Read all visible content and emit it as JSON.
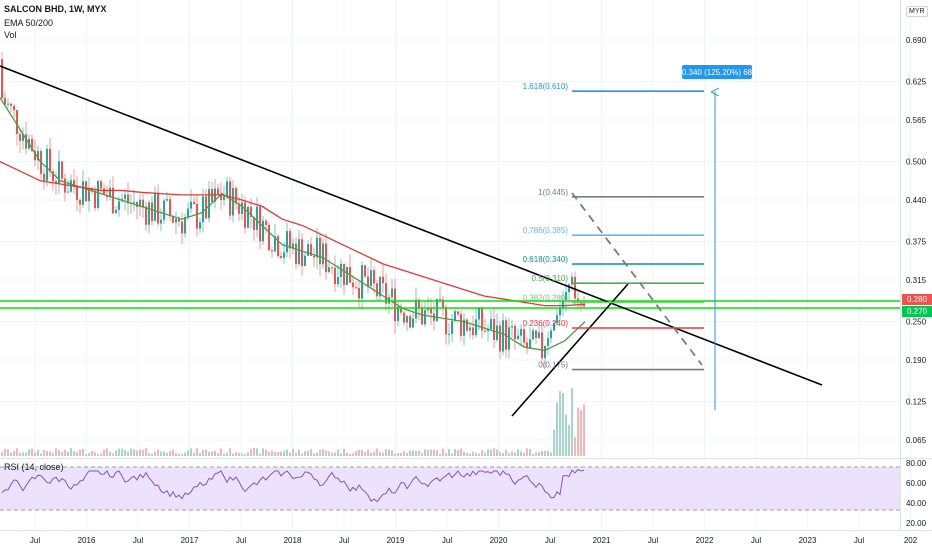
{
  "header": {
    "symbol_line": "SALCON BHD, 1W, MYX",
    "ema_label": "EMA 50/200",
    "vol_label": "Vol",
    "currency": "MYR",
    "rsi_label": "RSI (14, close)"
  },
  "colors": {
    "up": "#26a69a",
    "down": "#ef5350",
    "ema50": "#43a047",
    "ema200": "#e53935",
    "support": "#00e600",
    "target": "#2196f3",
    "rsi_line": "#7e57c2",
    "rsi_band": "#ede2fb"
  },
  "chart_data": {
    "type": "candlestick",
    "price_ticks": [
      "0.690",
      "0.625",
      "0.565",
      "0.500",
      "0.440",
      "0.375",
      "0.315",
      "0.250",
      "0.190",
      "0.125",
      "0.065"
    ],
    "time_ticks": [
      "Jul",
      "2016",
      "Jul",
      "2017",
      "Jul",
      "2018",
      "Jul",
      "2019",
      "Jul",
      "2020",
      "Jul",
      "2021",
      "Jul",
      "2022",
      "Jul",
      "2023",
      "Jul",
      "202"
    ],
    "rsi_ticks": [
      "80.00",
      "60.00",
      "40.00",
      "20.00"
    ],
    "current_price": "0.280",
    "support_level": "0.270",
    "fib_levels": [
      {
        "label": "1.618(0.610)",
        "price": 0.61,
        "color": "#2196f3"
      },
      {
        "label": "1(0.445)",
        "price": 0.445,
        "color": "#787b86"
      },
      {
        "label": "0.786(0.385)",
        "price": 0.385,
        "color": "#64b5f6"
      },
      {
        "label": "0.618(0.340)",
        "price": 0.34,
        "color": "#089981"
      },
      {
        "label": "0.5(0.310)",
        "price": 0.31,
        "color": "#4caf50"
      },
      {
        "label": "0.382(0.280)",
        "price": 0.28,
        "color": "#81c784"
      },
      {
        "label": "0.236(0.240)",
        "price": 0.24,
        "color": "#f23645"
      },
      {
        "label": "0(0.175)",
        "price": 0.175,
        "color": "#787b86"
      }
    ],
    "target_label": "0.340 (125.20%) 68",
    "series": [
      {
        "name": "EMA 50",
        "values": [
          0.6,
          0.55,
          0.5,
          0.47,
          0.46,
          0.45,
          0.44,
          0.43,
          0.42,
          0.41,
          0.42,
          0.45,
          0.43,
          0.4,
          0.37,
          0.36,
          0.35,
          0.33,
          0.31,
          0.29,
          0.27,
          0.26,
          0.255,
          0.25,
          0.24,
          0.23,
          0.21,
          0.205,
          0.22,
          0.25
        ]
      },
      {
        "name": "EMA 200",
        "values": [
          0.5,
          0.485,
          0.47,
          0.465,
          0.46,
          0.455,
          0.455,
          0.452,
          0.45,
          0.448,
          0.448,
          0.448,
          0.44,
          0.43,
          0.41,
          0.4,
          0.385,
          0.37,
          0.355,
          0.34,
          0.33,
          0.32,
          0.31,
          0.3,
          0.29,
          0.285,
          0.28,
          0.275,
          0.275,
          0.277
        ]
      }
    ]
  }
}
